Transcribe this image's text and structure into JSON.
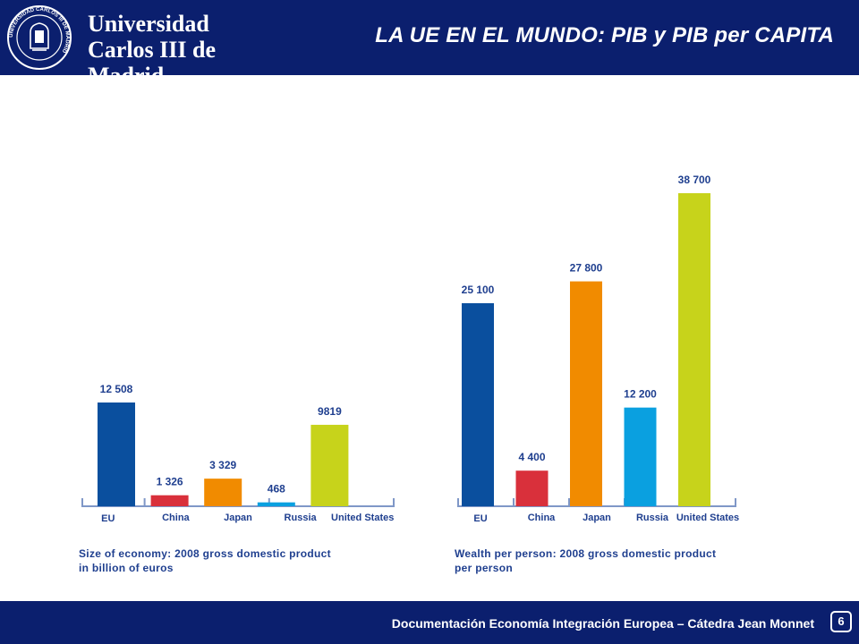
{
  "header": {
    "university_name": "Universidad\nCarlos III de Madrid",
    "slide_title": "LA UE EN EL MUNDO: PIB y PIB per CAPITA",
    "seal_text": "UNIVERSIDAD CARLOS III DE MADRID"
  },
  "footer": {
    "text": "Documentación Economía Integración Europea – Cátedra Jean Monnet",
    "page_number": "6"
  },
  "colors": {
    "header_bg": "#0b1f6e",
    "label_blue": "#1f3f8f",
    "axis": "#7f97c7",
    "EU": "#0a4f9e",
    "China": "#d9303b",
    "Japan": "#f18b00",
    "Russia": "#0aa0e0",
    "United States": "#c7d31b"
  },
  "chart_data": [
    {
      "type": "bar",
      "categories": [
        "EU",
        "China",
        "Japan",
        "Russia",
        "United States"
      ],
      "values": [
        12508,
        1326,
        3329,
        468,
        9819
      ],
      "value_labels": [
        "12 508",
        "1 326",
        "3 329",
        "468",
        "9819"
      ],
      "caption": "Size of economy: 2008 gross domestic product\nin billion of euros",
      "title": "",
      "xlabel": "",
      "ylabel": "",
      "ylim": [
        0,
        12508
      ],
      "grid": false,
      "legend": "none"
    },
    {
      "type": "bar",
      "categories": [
        "EU",
        "China",
        "Japan",
        "Russia",
        "United States"
      ],
      "values": [
        25100,
        4400,
        27800,
        12200,
        38700
      ],
      "value_labels": [
        "25 100",
        "4 400",
        "27 800",
        "12 200",
        "38 700"
      ],
      "caption": "Wealth per person: 2008 gross domestic product\nper person",
      "title": "",
      "xlabel": "",
      "ylabel": "",
      "ylim": [
        0,
        38700
      ],
      "grid": false,
      "legend": "none"
    }
  ]
}
